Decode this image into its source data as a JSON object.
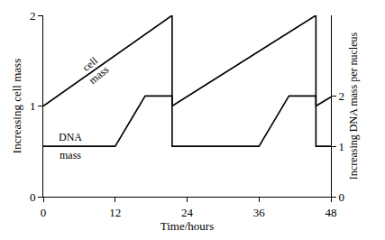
{
  "chart_data": {
    "type": "line",
    "x_label": "Time/hours",
    "y_label": "Increasing cell mass",
    "y2_label": "Increasing DNA mass per nucleus",
    "xlim": [
      0,
      48
    ],
    "xticks": [
      0,
      12,
      24,
      36,
      48
    ],
    "ylim": [
      0,
      2
    ],
    "yticks": [
      0,
      1,
      2
    ],
    "y2lim": [
      0,
      3.6
    ],
    "y2ticks": [
      0,
      1,
      2
    ],
    "grid": false,
    "series": [
      {
        "name": "cell mass",
        "color": "#000000",
        "x": [
          0,
          21.5,
          21.5,
          45.5,
          45.5,
          48
        ],
        "values": [
          1,
          2,
          1,
          2,
          1,
          1.1
        ]
      },
      {
        "name": "DNA mass",
        "color": "#000000",
        "axis": "y2",
        "x": [
          0,
          12,
          16,
          17,
          21.5,
          21.5,
          36,
          40,
          41,
          45.5,
          45.5,
          48
        ],
        "values": [
          1,
          1,
          1.8,
          2,
          2,
          1,
          1,
          1.8,
          2,
          2,
          1,
          1
        ]
      }
    ]
  }
}
